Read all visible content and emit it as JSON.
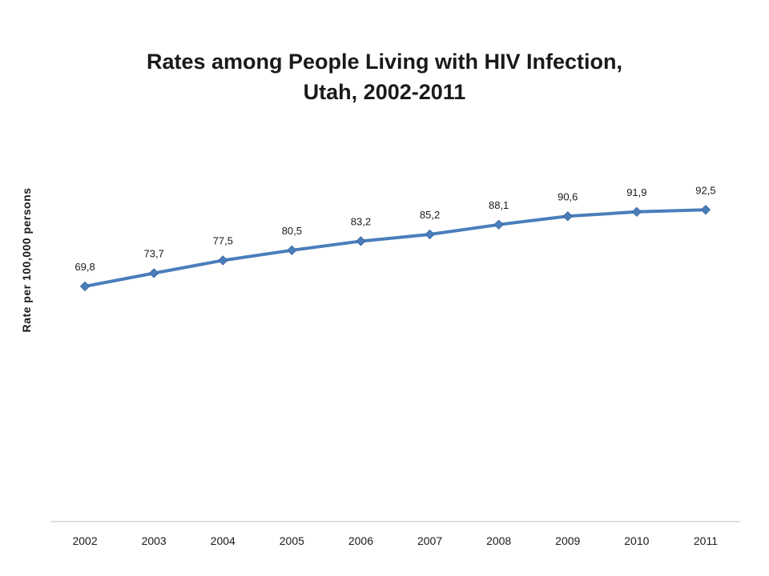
{
  "chart_data": {
    "type": "line",
    "title_line1": "Rates among People Living with HIV Infection,",
    "title_line2": "Utah, 2002-2011",
    "xlabel": "",
    "ylabel": "Rate per 100,000 persons",
    "categories": [
      "2002",
      "2003",
      "2004",
      "2005",
      "2006",
      "2007",
      "2008",
      "2009",
      "2010",
      "2011"
    ],
    "series": [
      {
        "values": [
          69.8,
          73.7,
          77.5,
          80.5,
          83.2,
          85.2,
          88.1,
          90.6,
          91.9,
          92.5
        ],
        "labels": [
          "69,8",
          "73,7",
          "77,5",
          "80,5",
          "83,2",
          "85,2",
          "88,1",
          "90,6",
          "91,9",
          "92,5"
        ],
        "color": "#4a7ebb"
      }
    ],
    "ylim": [
      0,
      150
    ],
    "grid": false,
    "legend": "none",
    "axis_color": "#bfbfbf"
  }
}
